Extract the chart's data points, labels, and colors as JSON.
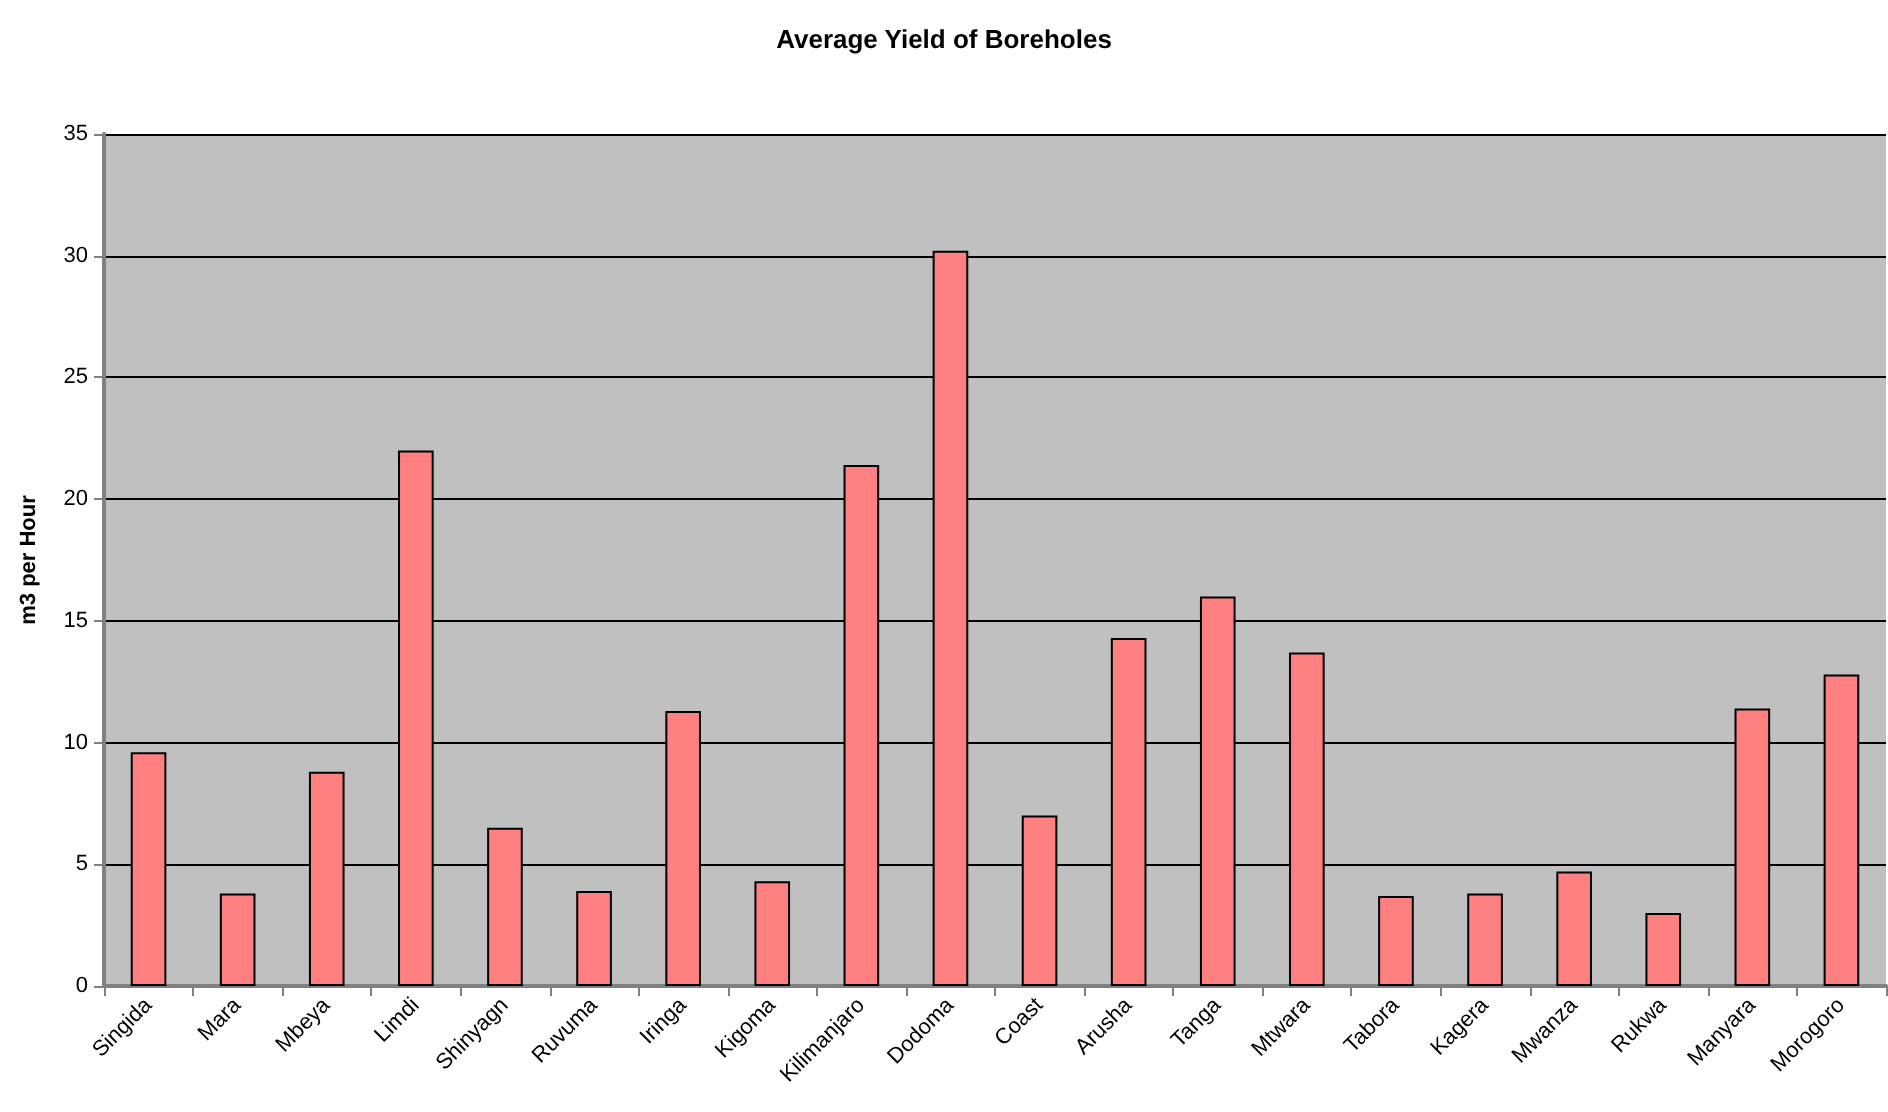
{
  "chart_data": {
    "type": "bar",
    "title": "Average Yield of Boreholes",
    "ylabel": "m3 per Hour",
    "categories": [
      "Singida",
      "Mara",
      "Mbeya",
      "Limdi",
      "Shinyagn",
      "Ruvuma",
      "Iringa",
      "Kigoma",
      "Kilimanjaro",
      "Dodoma",
      "Coast",
      "Arusha",
      "Tanga",
      "Mtwara",
      "Tabora",
      "Kagera",
      "Mwanza",
      "Rukwa",
      "Manyara",
      "Morogoro"
    ],
    "values": [
      9.6,
      3.8,
      8.8,
      22.0,
      6.5,
      3.9,
      11.3,
      4.3,
      21.4,
      30.2,
      7.0,
      14.3,
      16.0,
      13.7,
      3.7,
      3.8,
      4.7,
      3.0,
      11.4,
      12.8
    ],
    "color": "#ff8080",
    "ylim": [
      0,
      35
    ],
    "yticks": [
      0,
      5,
      10,
      15,
      20,
      25,
      30,
      35
    ],
    "grid": "y"
  }
}
